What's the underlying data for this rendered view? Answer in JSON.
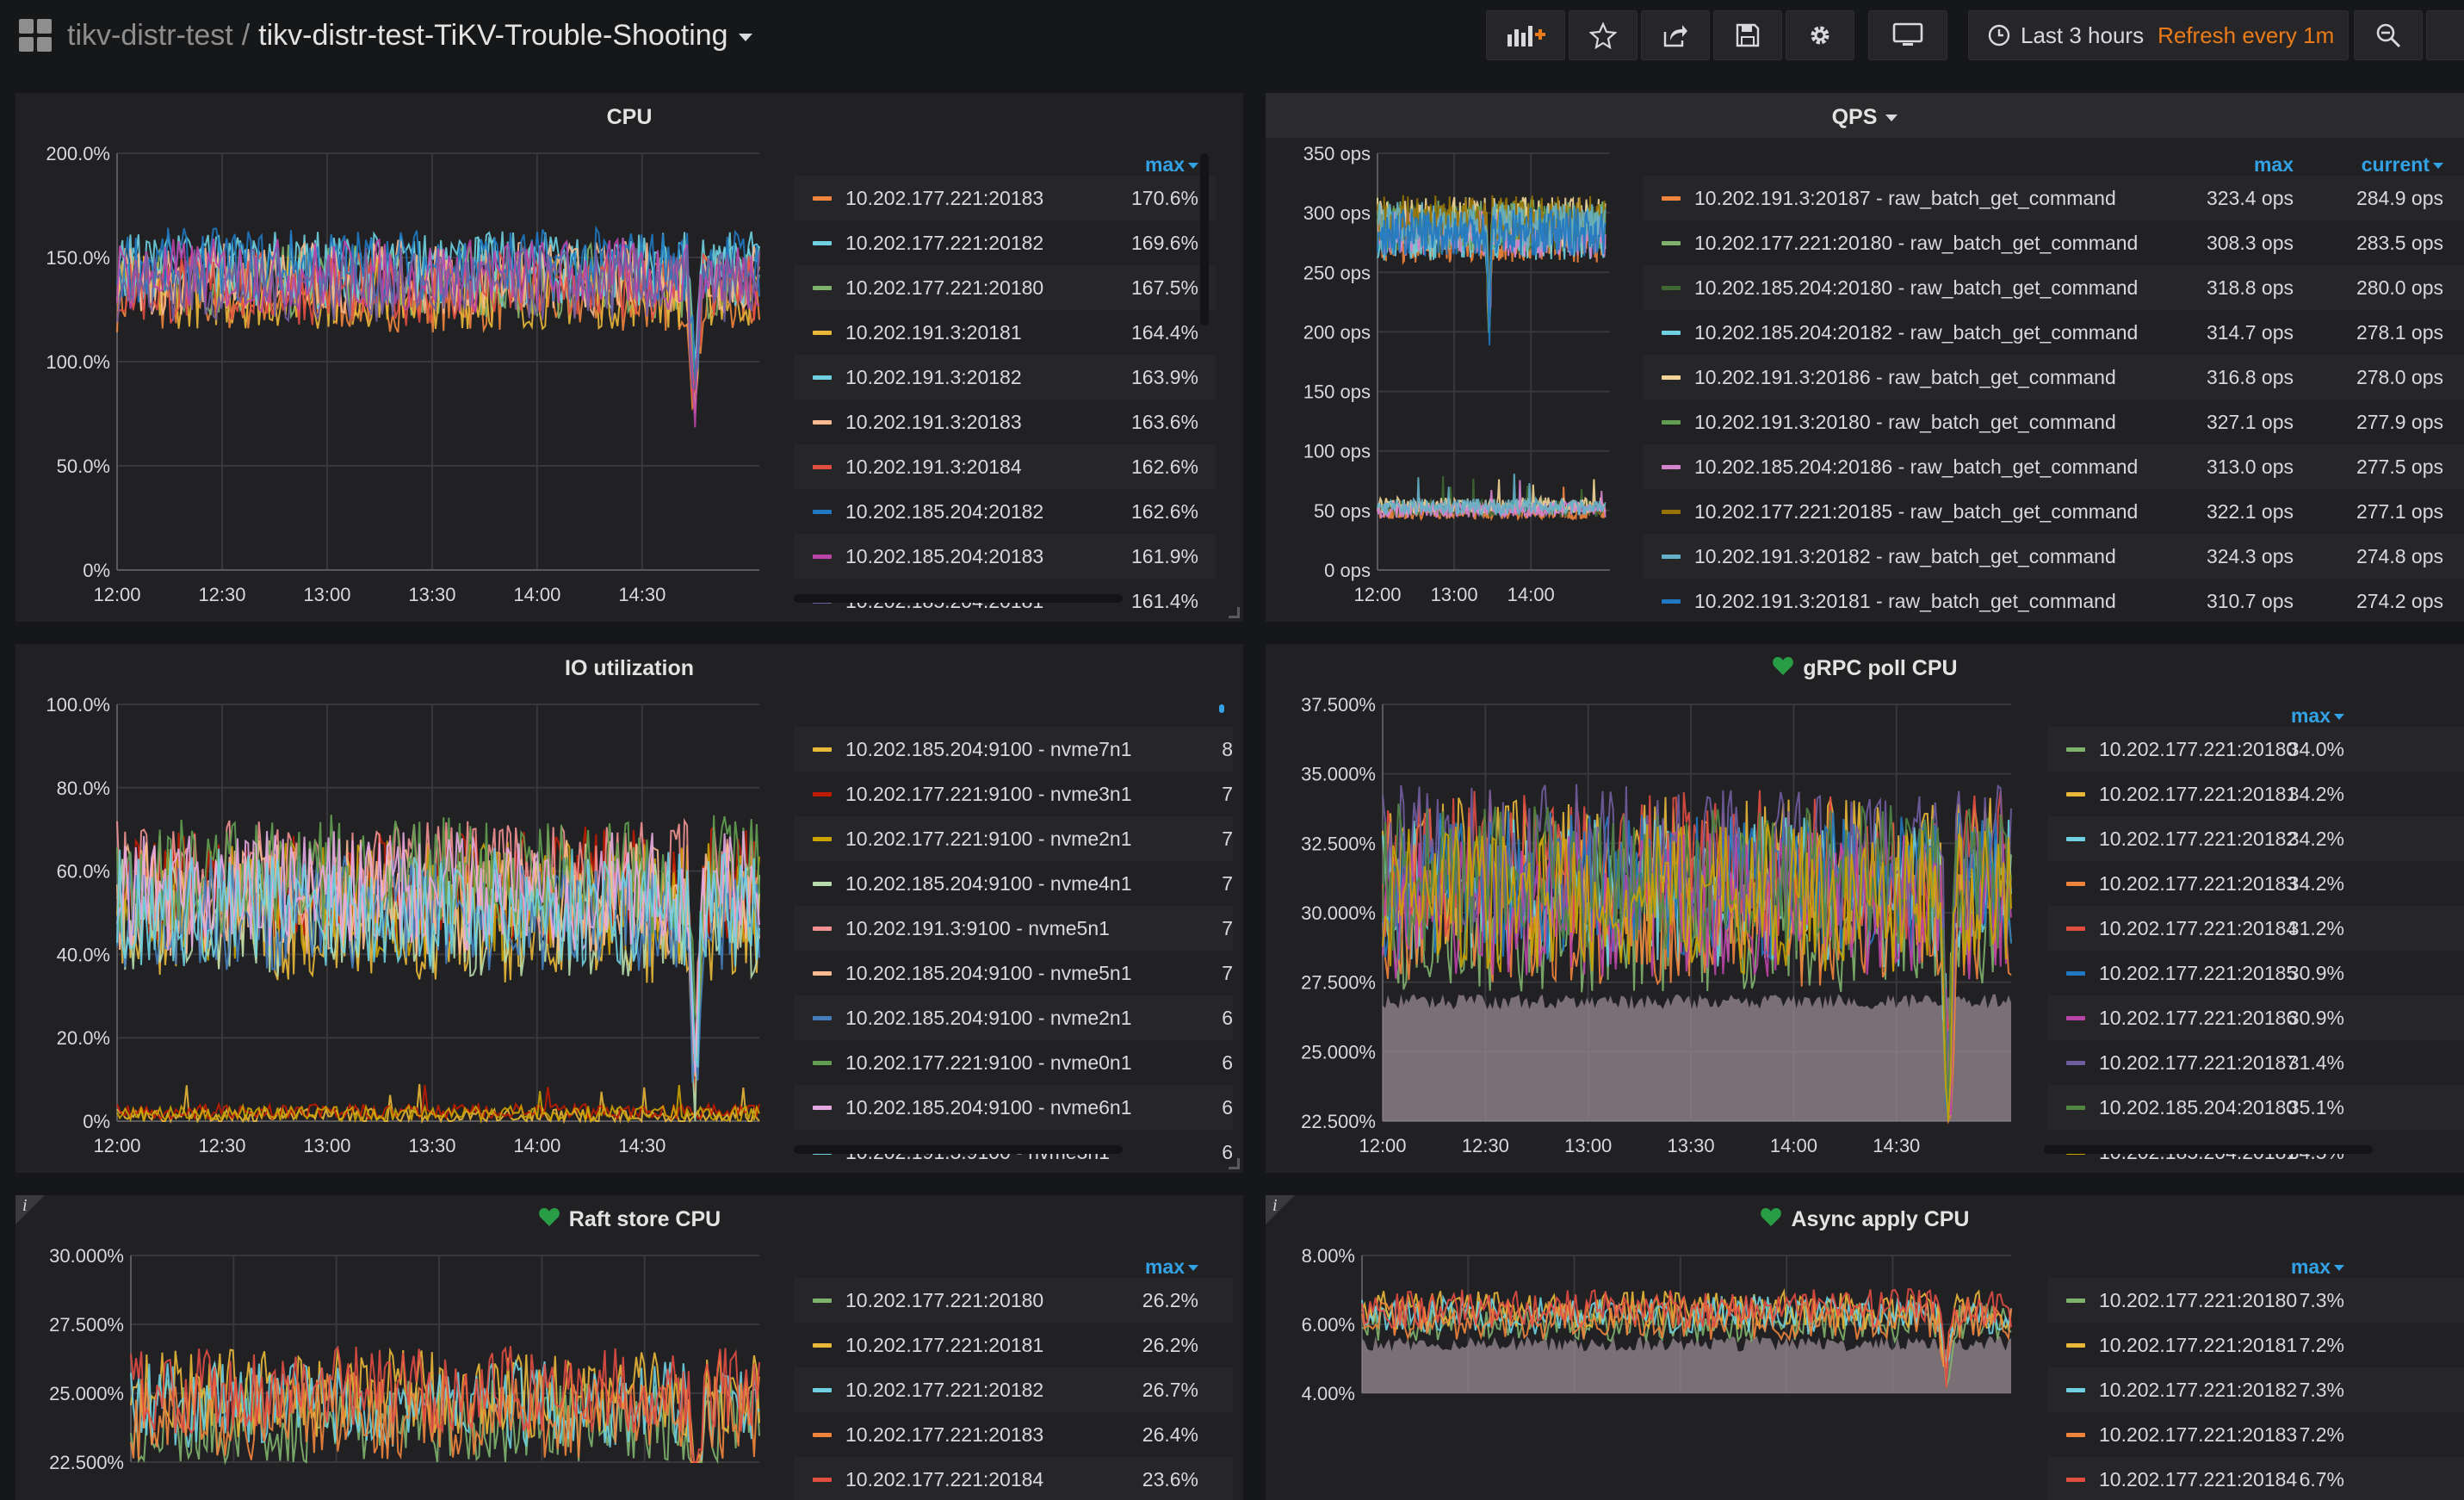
{
  "nav": {
    "folder": "tikv-distr-test",
    "separator": "/",
    "dashboard": "tikv-distr-test-TiKV-Trouble-Shooting",
    "time_range": "Last 3 hours",
    "refresh": "Refresh every 1m",
    "icons": [
      "grid-icon",
      "add-panel-icon",
      "star-icon",
      "share-icon",
      "save-icon",
      "settings-icon",
      "tv-mode-icon",
      "clock-icon",
      "zoom-out-icon"
    ]
  },
  "panels": {
    "cpu": {
      "title": "CPU",
      "y_ticks": [
        "200.0%",
        "150.0%",
        "100.0%",
        "50.0%",
        "0%"
      ],
      "x_ticks": [
        "12:00",
        "12:30",
        "13:00",
        "13:30",
        "14:00",
        "14:30"
      ],
      "cols": [
        "max"
      ],
      "rows": [
        {
          "name": "10.202.177.221:20183",
          "c": "#ef843c",
          "v": [
            "170.6%"
          ]
        },
        {
          "name": "10.202.177.221:20182",
          "c": "#6ed0e0",
          "v": [
            "169.6%"
          ]
        },
        {
          "name": "10.202.177.221:20180",
          "c": "#7eb26d",
          "v": [
            "167.5%"
          ]
        },
        {
          "name": "10.202.191.3:20181",
          "c": "#eab839",
          "v": [
            "164.4%"
          ]
        },
        {
          "name": "10.202.191.3:20182",
          "c": "#6ed0e0",
          "v": [
            "163.9%"
          ]
        },
        {
          "name": "10.202.191.3:20183",
          "c": "#f9ba8f",
          "v": [
            "163.6%"
          ]
        },
        {
          "name": "10.202.191.3:20184",
          "c": "#e24d42",
          "v": [
            "162.6%"
          ]
        },
        {
          "name": "10.202.185.204:20182",
          "c": "#1f78c1",
          "v": [
            "162.6%"
          ]
        },
        {
          "name": "10.202.185.204:20183",
          "c": "#ba43a9",
          "v": [
            "161.9%"
          ]
        },
        {
          "name": "10.202.185.204:20181",
          "c": "#705da0",
          "v": [
            "161.4%"
          ]
        }
      ],
      "chart_data": {
        "type": "line",
        "ylabel": "",
        "ylim": [
          0,
          200
        ],
        "x": [
          "12:00",
          "14:50"
        ],
        "series_band": {
          "low": 120,
          "high": 160,
          "dip_at": "14:44",
          "dip_to": 85
        }
      }
    },
    "qps": {
      "title": "QPS",
      "y_ticks": [
        "350 ops",
        "300 ops",
        "250 ops",
        "200 ops",
        "150 ops",
        "100 ops",
        "50 ops",
        "0 ops"
      ],
      "x_ticks": [
        "12:00",
        "13:00",
        "14:00"
      ],
      "cols": [
        "max",
        "current"
      ],
      "rows": [
        {
          "name": "10.202.191.3:20187 - raw_batch_get_command",
          "c": "#ef843c",
          "v": [
            "323.4 ops",
            "284.9 ops"
          ]
        },
        {
          "name": "10.202.177.221:20180 - raw_batch_get_command",
          "c": "#7eb26d",
          "v": [
            "308.3 ops",
            "283.5 ops"
          ]
        },
        {
          "name": "10.202.185.204:20180 - raw_batch_get_command",
          "c": "#3f6833",
          "v": [
            "318.8 ops",
            "280.0 ops"
          ]
        },
        {
          "name": "10.202.185.204:20182 - raw_batch_get_command",
          "c": "#6ed0e0",
          "v": [
            "314.7 ops",
            "278.1 ops"
          ]
        },
        {
          "name": "10.202.191.3:20186 - raw_batch_get_command",
          "c": "#f4d598",
          "v": [
            "316.8 ops",
            "278.0 ops"
          ]
        },
        {
          "name": "10.202.191.3:20180 - raw_batch_get_command",
          "c": "#629e51",
          "v": [
            "327.1 ops",
            "277.9 ops"
          ]
        },
        {
          "name": "10.202.185.204:20186 - raw_batch_get_command",
          "c": "#d683ce",
          "v": [
            "313.0 ops",
            "277.5 ops"
          ]
        },
        {
          "name": "10.202.177.221:20185 - raw_batch_get_command",
          "c": "#967302",
          "v": [
            "322.1 ops",
            "277.1 ops"
          ]
        },
        {
          "name": "10.202.191.3:20182 - raw_batch_get_command",
          "c": "#64b0c8",
          "v": [
            "324.3 ops",
            "274.8 ops"
          ]
        },
        {
          "name": "10.202.191.3:20181 - raw_batch_get_command",
          "c": "#1f78c1",
          "v": [
            "310.7 ops",
            "274.2 ops"
          ]
        }
      ],
      "chart_data": {
        "type": "line",
        "ylim": [
          0,
          350
        ],
        "x": [
          "12:00",
          "14:50"
        ],
        "series_band": {
          "low": 265,
          "high": 310,
          "low2": 45,
          "high2": 60
        }
      }
    },
    "io": {
      "title": "IO utilization",
      "y_ticks": [
        "100.0%",
        "80.0%",
        "60.0%",
        "40.0%",
        "20.0%",
        "0%"
      ],
      "x_ticks": [
        "12:00",
        "12:30",
        "13:00",
        "13:30",
        "14:00",
        "14:30"
      ],
      "rows": [
        {
          "name": "10.202.185.204:9100 - nvme7n1",
          "c": "#eab839",
          "v": [
            "8"
          ]
        },
        {
          "name": "10.202.177.221:9100 - nvme3n1",
          "c": "#bf1b00",
          "v": [
            "7"
          ]
        },
        {
          "name": "10.202.177.221:9100 - nvme2n1",
          "c": "#cca300",
          "v": [
            "7"
          ]
        },
        {
          "name": "10.202.185.204:9100 - nvme4n1",
          "c": "#b7dbab",
          "v": [
            "7"
          ]
        },
        {
          "name": "10.202.191.3:9100 - nvme5n1",
          "c": "#f29191",
          "v": [
            "7"
          ]
        },
        {
          "name": "10.202.185.204:9100 - nvme5n1",
          "c": "#f9ba8f",
          "v": [
            "7"
          ]
        },
        {
          "name": "10.202.185.204:9100 - nvme2n1",
          "c": "#447ebc",
          "v": [
            "6"
          ]
        },
        {
          "name": "10.202.177.221:9100 - nvme0n1",
          "c": "#629e51",
          "v": [
            "6"
          ]
        },
        {
          "name": "10.202.185.204:9100 - nvme6n1",
          "c": "#e5a8e2",
          "v": [
            "6"
          ]
        },
        {
          "name": "10.202.191.3:9100 - nvme3n1",
          "c": "#6ed0e0",
          "v": [
            "6"
          ]
        }
      ],
      "chart_data": {
        "type": "line",
        "ylim": [
          0,
          100
        ],
        "x": [
          "12:00",
          "14:50"
        ],
        "series_band": {
          "low": 38,
          "high": 70,
          "low2": 0,
          "high2": 4
        }
      }
    },
    "grpc": {
      "title": "gRPC poll CPU",
      "y_ticks": [
        "37.500%",
        "35.000%",
        "32.500%",
        "30.000%",
        "27.500%",
        "25.000%",
        "22.500%"
      ],
      "x_ticks": [
        "12:00",
        "12:30",
        "13:00",
        "13:30",
        "14:00",
        "14:30"
      ],
      "cols": [
        "max"
      ],
      "rows": [
        {
          "name": "10.202.177.221:20180",
          "c": "#7eb26d",
          "v": [
            "34.0%"
          ]
        },
        {
          "name": "10.202.177.221:20181",
          "c": "#eab839",
          "v": [
            "34.2%"
          ]
        },
        {
          "name": "10.202.177.221:20182",
          "c": "#6ed0e0",
          "v": [
            "34.2%"
          ]
        },
        {
          "name": "10.202.177.221:20183",
          "c": "#ef843c",
          "v": [
            "34.2%"
          ]
        },
        {
          "name": "10.202.177.221:20184",
          "c": "#e24d42",
          "v": [
            "31.2%"
          ]
        },
        {
          "name": "10.202.177.221:20185",
          "c": "#1f78c1",
          "v": [
            "30.9%"
          ]
        },
        {
          "name": "10.202.177.221:20186",
          "c": "#ba43a9",
          "v": [
            "30.9%"
          ]
        },
        {
          "name": "10.202.177.221:20187",
          "c": "#705da0",
          "v": [
            "31.4%"
          ]
        },
        {
          "name": "10.202.185.204:20180",
          "c": "#508642",
          "v": [
            "35.1%"
          ]
        },
        {
          "name": "10.202.185.204:20181",
          "c": "#cca300",
          "v": [
            "34.5%"
          ]
        }
      ],
      "chart_data": {
        "type": "area",
        "ylim": [
          22.5,
          37.5
        ],
        "x": [
          "12:00",
          "14:50"
        ],
        "series_band": {
          "low": 28,
          "high": 34
        }
      }
    },
    "raft": {
      "title": "Raft store CPU",
      "y_ticks": [
        "30.000%",
        "27.500%",
        "25.000%",
        "22.500%"
      ],
      "cols": [
        "max"
      ],
      "rows": [
        {
          "name": "10.202.177.221:20180",
          "c": "#7eb26d",
          "v": [
            "26.2%"
          ]
        },
        {
          "name": "10.202.177.221:20181",
          "c": "#eab839",
          "v": [
            "26.2%"
          ]
        },
        {
          "name": "10.202.177.221:20182",
          "c": "#6ed0e0",
          "v": [
            "26.7%"
          ]
        },
        {
          "name": "10.202.177.221:20183",
          "c": "#ef843c",
          "v": [
            "26.4%"
          ]
        },
        {
          "name": "10.202.177.221:20184",
          "c": "#e24d42",
          "v": [
            "23.6%"
          ]
        }
      ],
      "chart_data": {
        "type": "line",
        "ylim": [
          21.5,
          30
        ],
        "x": [
          "12:00",
          "14:50"
        ],
        "series_band": {
          "low": 22,
          "high": 26
        }
      }
    },
    "async": {
      "title": "Async apply CPU",
      "y_ticks": [
        "8.00%",
        "6.00%",
        "4.00%"
      ],
      "cols": [
        "max"
      ],
      "rows": [
        {
          "name": "10.202.177.221:20180",
          "c": "#7eb26d",
          "v": [
            "7.3%"
          ]
        },
        {
          "name": "10.202.177.221:20181",
          "c": "#eab839",
          "v": [
            "7.2%"
          ]
        },
        {
          "name": "10.202.177.221:20182",
          "c": "#6ed0e0",
          "v": [
            "7.3%"
          ]
        },
        {
          "name": "10.202.177.221:20183",
          "c": "#ef843c",
          "v": [
            "7.2%"
          ]
        },
        {
          "name": "10.202.177.221:20184",
          "c": "#e24d42",
          "v": [
            "6.7%"
          ]
        }
      ],
      "chart_data": {
        "type": "area",
        "ylim": [
          3.5,
          8
        ],
        "x": [
          "12:00",
          "14:50"
        ],
        "series_band": {
          "low": 5.4,
          "high": 6.8
        }
      }
    }
  }
}
